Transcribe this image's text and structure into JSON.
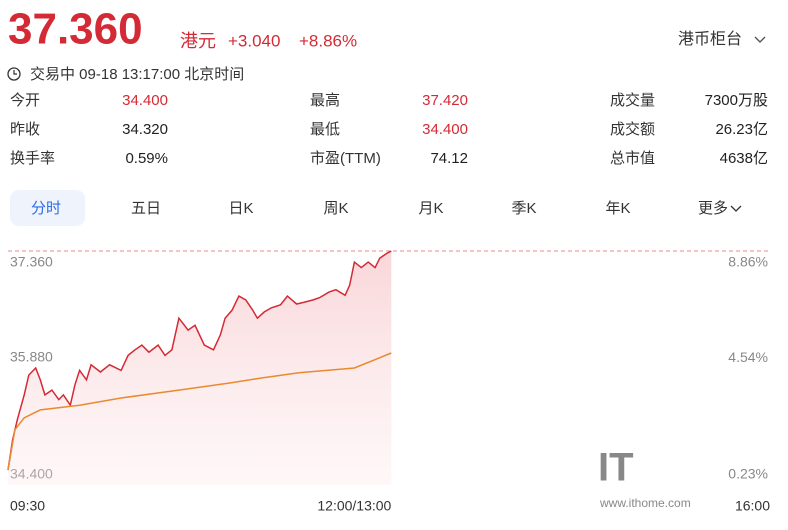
{
  "header": {
    "price": "37.360",
    "currency": "港元",
    "change": "+3.040",
    "change_pct": "+8.86%",
    "counter": "港币柜台",
    "status": "交易中 09-18 13:17:00 北京时间"
  },
  "stats": [
    [
      {
        "label": "今开",
        "value": "34.400"
      },
      {
        "label": "最高",
        "value": "37.420"
      },
      {
        "label": "成交量",
        "value": "7300万股"
      }
    ],
    [
      {
        "label": "昨收",
        "value": "34.320"
      },
      {
        "label": "最低",
        "value": "34.400"
      },
      {
        "label": "成交额",
        "value": "26.23亿"
      }
    ],
    [
      {
        "label": "换手率",
        "value": "0.59%"
      },
      {
        "label": "市盈(TTM)",
        "value": "74.12"
      },
      {
        "label": "总市值",
        "value": "4638亿"
      }
    ]
  ],
  "tabs": [
    "分时",
    "五日",
    "日K",
    "周K",
    "月K",
    "季K",
    "年K",
    "更多"
  ],
  "watermark": {
    "logo": "IT",
    "url": "www.ithome.com"
  },
  "chart_data": {
    "type": "line",
    "xlim": [
      0,
      330
    ],
    "xticks": [
      {
        "value": 0,
        "label": "09:30"
      },
      {
        "value": 150,
        "label": "12:00/13:00"
      },
      {
        "value": 330,
        "label": "16:00"
      }
    ],
    "ylim": [
      34.4,
      37.36
    ],
    "yticks": [
      {
        "value": 34.4,
        "label": "34.400"
      },
      {
        "value": 35.88,
        "label": "35.880"
      },
      {
        "value": 37.36,
        "label": "37.360"
      }
    ],
    "y2lim": [
      0.23,
      8.86
    ],
    "y2ticks": [
      {
        "value": 0.23,
        "label": "0.23%"
      },
      {
        "value": 4.54,
        "label": "4.54%"
      },
      {
        "value": 8.86,
        "label": "8.86%"
      }
    ],
    "series": [
      {
        "color": "#d42a35",
        "x": [
          0,
          2,
          4,
          7,
          9,
          12,
          14,
          16,
          19,
          22,
          24,
          27,
          29,
          31,
          34,
          36,
          40,
          44,
          49,
          52,
          55,
          58,
          61,
          65,
          68,
          71,
          74,
          78,
          81,
          85,
          89,
          92,
          94,
          97,
          100,
          103,
          106,
          108,
          111,
          114,
          118,
          121,
          125,
          128,
          132,
          135,
          139,
          142,
          146,
          148,
          150,
          153,
          156,
          159,
          161,
          164,
          166
        ],
        "values": [
          34.59,
          34.97,
          35.22,
          35.54,
          35.79,
          35.88,
          35.73,
          35.54,
          35.6,
          35.48,
          35.54,
          35.41,
          35.67,
          35.85,
          35.73,
          35.92,
          35.83,
          35.92,
          35.85,
          36.04,
          36.11,
          36.17,
          36.08,
          36.17,
          36.04,
          36.11,
          36.51,
          36.36,
          36.42,
          36.17,
          36.11,
          36.3,
          36.51,
          36.61,
          36.79,
          36.74,
          36.61,
          36.51,
          36.59,
          36.64,
          36.68,
          36.79,
          36.69,
          36.71,
          36.74,
          36.77,
          36.84,
          36.87,
          36.8,
          36.93,
          37.22,
          37.15,
          37.22,
          37.15,
          37.27,
          37.33,
          37.36
        ]
      },
      {
        "color": "#ea8a2e",
        "x": [
          0,
          3,
          7,
          14,
          31,
          49,
          74,
          96,
          109,
          126,
          150,
          166
        ],
        "values": [
          34.59,
          35.1,
          35.25,
          35.35,
          35.41,
          35.5,
          35.6,
          35.69,
          35.75,
          35.82,
          35.88,
          36.07
        ]
      }
    ]
  }
}
